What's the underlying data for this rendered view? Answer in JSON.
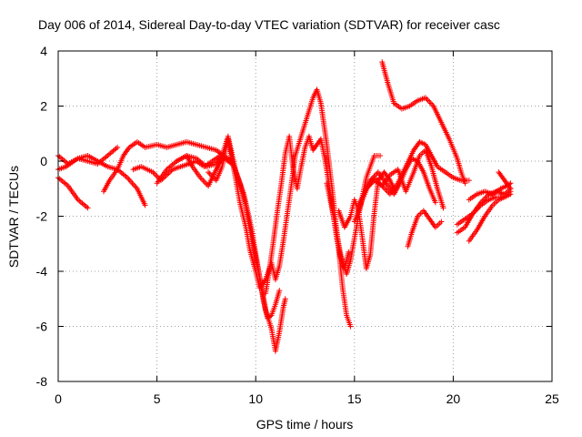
{
  "chart_data": {
    "type": "scatter",
    "title": "Day 006 of 2014, Sidereal Day-to-day VTEC variation (SDTVAR) for receiver casc",
    "xlabel": "GPS time / hours",
    "ylabel": "SDTVAR / TECUs",
    "xlim": [
      0,
      25
    ],
    "ylim": [
      -8,
      4
    ],
    "xticks": [
      0,
      5,
      10,
      15,
      20,
      25
    ],
    "yticks": [
      -8,
      -6,
      -4,
      -2,
      0,
      2,
      4
    ],
    "xtick_labels": [
      "0",
      "5",
      "10",
      "15",
      "20",
      "25"
    ],
    "ytick_labels": [
      "-8",
      "-6",
      "-4",
      "-2",
      "0",
      "2",
      "4"
    ],
    "grid": true,
    "marker": "+",
    "color": "#ff0000",
    "series": [
      {
        "name": "s1",
        "x": [
          0.0,
          0.5,
          1.0,
          1.5
        ],
        "y": [
          -0.6,
          -0.9,
          -1.4,
          -1.7
        ]
      },
      {
        "name": "s2",
        "x": [
          0.0,
          0.5,
          1.0,
          1.5,
          2.0,
          2.5,
          3.0
        ],
        "y": [
          0.2,
          -0.1,
          0.1,
          0.0,
          -0.1,
          0.2,
          0.5
        ]
      },
      {
        "name": "s3",
        "x": [
          0.0,
          0.4,
          1.0,
          1.5,
          2.0,
          2.5,
          3.0,
          3.5,
          4.0,
          4.4
        ],
        "y": [
          -0.3,
          -0.2,
          0.1,
          0.2,
          0.0,
          -0.2,
          -0.3,
          -0.6,
          -1.0,
          -1.6
        ]
      },
      {
        "name": "s4",
        "x": [
          2.3,
          2.6,
          3.0,
          3.3,
          3.6,
          4.0,
          4.4,
          5.0,
          5.5,
          6.0,
          6.5,
          7.0,
          7.5,
          8.0,
          8.4
        ],
        "y": [
          -1.1,
          -0.7,
          -0.3,
          0.2,
          0.5,
          0.7,
          0.5,
          0.6,
          0.5,
          0.6,
          0.7,
          0.6,
          0.5,
          0.4,
          0.2
        ]
      },
      {
        "name": "s5",
        "x": [
          3.8,
          4.2,
          4.8,
          5.2,
          5.8,
          6.2,
          6.6,
          7.0,
          7.4,
          7.8,
          8.2,
          8.6,
          8.8
        ],
        "y": [
          -0.3,
          -0.2,
          -0.4,
          -0.7,
          -0.3,
          -0.2,
          -0.1,
          0.0,
          -0.2,
          0.0,
          0.2,
          0.0,
          -0.1
        ]
      },
      {
        "name": "s6",
        "x": [
          5.0,
          5.5,
          6.0,
          6.5,
          6.8,
          7.2,
          7.6,
          8.0,
          8.4,
          8.8,
          9.2,
          9.5,
          9.8,
          10.2,
          10.5,
          10.8,
          11.0,
          11.2,
          11.4,
          11.5
        ],
        "y": [
          -0.8,
          -0.3,
          0.0,
          0.2,
          -0.2,
          -0.6,
          -0.9,
          -0.3,
          0.2,
          0.0,
          -0.8,
          -1.6,
          -2.8,
          -4.2,
          -5.4,
          -6.1,
          -6.9,
          -6.2,
          -5.3,
          -5.0
        ]
      },
      {
        "name": "s7",
        "x": [
          6.0,
          6.5,
          7.0,
          7.5,
          8.0,
          8.3,
          8.6,
          9.0,
          9.4,
          9.8,
          10.1,
          10.4,
          10.6,
          10.8,
          11.0,
          11.2
        ],
        "y": [
          0.0,
          0.2,
          0.1,
          -0.2,
          -0.1,
          0.2,
          0.9,
          -0.4,
          -1.2,
          -2.5,
          -3.8,
          -5.1,
          -5.7,
          -5.6,
          -5.2,
          -4.7
        ]
      },
      {
        "name": "s8",
        "x": [
          7.6,
          8.0,
          8.3,
          8.6,
          8.9,
          9.2,
          9.5,
          9.7,
          10.0,
          10.2,
          10.5,
          10.8,
          11.0,
          11.2,
          11.4,
          11.6,
          11.8,
          12.0,
          12.3,
          12.6,
          12.9,
          13.1,
          13.3,
          13.6,
          13.9,
          14.2,
          14.4,
          14.6,
          14.8
        ],
        "y": [
          -0.4,
          -0.7,
          -0.2,
          0.8,
          -0.3,
          -1.5,
          -2.4,
          -3.2,
          -4.0,
          -4.6,
          -4.3,
          -3.7,
          -4.3,
          -3.8,
          -2.9,
          -1.9,
          -0.9,
          0.2,
          0.9,
          1.6,
          2.3,
          2.6,
          2.1,
          0.6,
          -1.2,
          -3.2,
          -4.6,
          -5.6,
          -6.0
        ]
      },
      {
        "name": "s9",
        "x": [
          10.5,
          10.7,
          10.9,
          11.1,
          11.3,
          11.5,
          11.7,
          11.9,
          12.1,
          12.3,
          12.5,
          12.7,
          12.9,
          13.1,
          13.3,
          13.5,
          13.7,
          13.9,
          14.1,
          14.3,
          14.5,
          14.7
        ],
        "y": [
          -4.8,
          -3.9,
          -2.9,
          -1.8,
          -0.8,
          0.3,
          0.9,
          -0.3,
          -1.0,
          -0.2,
          0.5,
          0.9,
          0.4,
          0.6,
          0.8,
          0.1,
          -0.8,
          -1.8,
          -2.8,
          -3.5,
          -3.9,
          -3.3
        ]
      },
      {
        "name": "s10",
        "x": [
          13.6,
          14.0,
          14.3,
          14.6,
          14.8,
          15.0,
          15.2,
          15.4,
          15.6,
          15.8,
          16.0,
          16.3
        ],
        "y": [
          -0.8,
          -2.2,
          -3.4,
          -4.1,
          -3.6,
          -2.8,
          -2.0,
          -1.3,
          -0.6,
          -0.2,
          0.2,
          0.2
        ]
      },
      {
        "name": "s11",
        "x": [
          14.2,
          14.5,
          14.8,
          15.0,
          15.2,
          15.4,
          15.6,
          15.8,
          16.0,
          16.2,
          16.5,
          16.8,
          17.0
        ],
        "y": [
          -1.8,
          -2.4,
          -2.0,
          -1.4,
          -1.8,
          -2.8,
          -3.9,
          -3.4,
          -1.9,
          -0.7,
          -0.4,
          -0.7,
          -1.0
        ]
      },
      {
        "name": "s12",
        "x": [
          15.0,
          15.4,
          15.8,
          16.2,
          16.6,
          17.0,
          17.3,
          17.6,
          17.9,
          18.2,
          18.5,
          18.8,
          19.1
        ],
        "y": [
          -2.2,
          -1.4,
          -0.7,
          -0.4,
          -0.8,
          -1.2,
          -0.8,
          -0.3,
          0.1,
          0.0,
          -0.4,
          -1.0,
          -1.5
        ]
      },
      {
        "name": "s13",
        "x": [
          15.2,
          15.6,
          16.0,
          16.4,
          16.8,
          17.2,
          17.6,
          18.0,
          18.3,
          18.6,
          18.9,
          19.2,
          19.5
        ],
        "y": [
          -1.6,
          -1.0,
          -0.7,
          -0.9,
          -0.5,
          -0.3,
          -1.1,
          -0.4,
          0.2,
          0.4,
          -0.2,
          -1.0,
          -1.7
        ]
      },
      {
        "name": "s14",
        "x": [
          15.6,
          16.0,
          16.4,
          16.8,
          17.2,
          17.6,
          18.0,
          18.3,
          18.6,
          18.9,
          19.2,
          19.6,
          20.0,
          20.4,
          20.8
        ],
        "y": [
          -1.0,
          -0.6,
          -0.9,
          -1.2,
          -0.8,
          -0.2,
          0.4,
          0.7,
          0.6,
          0.2,
          -0.2,
          -0.4,
          -0.6,
          -0.7,
          -0.7
        ]
      },
      {
        "name": "s15",
        "x": [
          16.4,
          16.7,
          17.0,
          17.4,
          17.8,
          18.2,
          18.6,
          19.0,
          19.4,
          19.8,
          20.2,
          20.4,
          20.6
        ],
        "y": [
          3.6,
          2.8,
          2.1,
          1.9,
          2.0,
          2.2,
          2.3,
          2.0,
          1.4,
          0.8,
          0.1,
          -0.4,
          -0.8
        ]
      },
      {
        "name": "s16",
        "x": [
          17.7,
          17.9,
          18.2,
          18.5,
          18.8,
          19.1,
          19.4
        ],
        "y": [
          -3.1,
          -2.6,
          -2.0,
          -1.8,
          -2.1,
          -2.4,
          -2.2
        ]
      },
      {
        "name": "s17",
        "x": [
          20.2,
          20.6,
          21.0,
          21.4,
          21.8,
          22.2,
          22.6,
          22.9
        ],
        "y": [
          -2.6,
          -2.4,
          -1.9,
          -1.5,
          -1.2,
          -1.1,
          -1.2,
          -1.0
        ]
      },
      {
        "name": "s18",
        "x": [
          20.2,
          20.6,
          21.0,
          21.4,
          21.8,
          22.2,
          22.6,
          22.9
        ],
        "y": [
          -2.3,
          -2.1,
          -1.9,
          -1.6,
          -1.4,
          -1.3,
          -1.3,
          -1.1
        ]
      },
      {
        "name": "s19",
        "x": [
          20.8,
          21.2,
          21.6,
          22.0,
          22.3,
          22.6,
          22.9
        ],
        "y": [
          -2.9,
          -2.5,
          -2.0,
          -1.6,
          -1.4,
          -1.3,
          -1.2
        ]
      },
      {
        "name": "s20",
        "x": [
          20.8,
          21.2,
          21.6,
          22.0,
          22.4,
          22.7,
          22.9
        ],
        "y": [
          -1.4,
          -1.2,
          -1.1,
          -1.2,
          -1.0,
          -0.9,
          -0.8
        ]
      },
      {
        "name": "s21",
        "x": [
          22.3,
          22.6,
          22.9
        ],
        "y": [
          -0.4,
          -0.7,
          -1.0
        ]
      }
    ]
  }
}
